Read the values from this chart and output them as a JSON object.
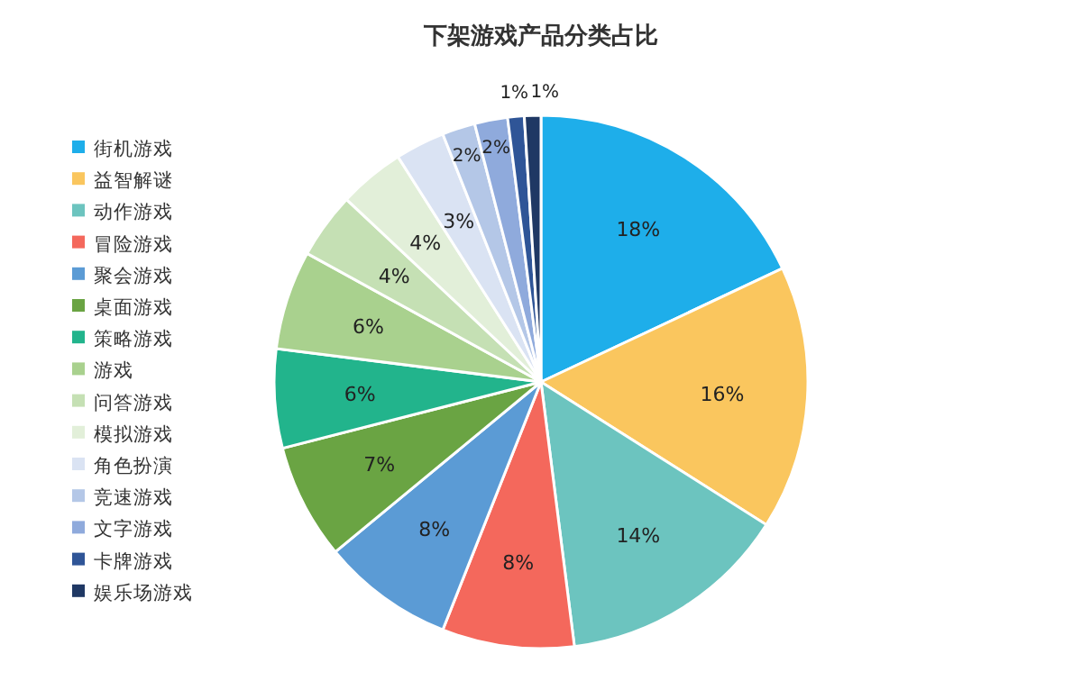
{
  "chart_data": {
    "type": "pie",
    "title": "下架游戏产品分类占比",
    "categories": [
      "街机游戏",
      "益智解谜",
      "动作游戏",
      "冒险游戏",
      "聚会游戏",
      "桌面游戏",
      "策略游戏",
      "游戏",
      "问答游戏",
      "模拟游戏",
      "角色扮演",
      "竞速游戏",
      "文字游戏",
      "卡牌游戏",
      "娱乐场游戏"
    ],
    "values": [
      18,
      16,
      14,
      8,
      8,
      7,
      6,
      6,
      4,
      4,
      3,
      2,
      2,
      1,
      1
    ],
    "colors": [
      "#1eaeea",
      "#fac65e",
      "#6cc4bf",
      "#f4685c",
      "#5b9bd5",
      "#6aa443",
      "#22b48c",
      "#a9d18e",
      "#c5e0b4",
      "#e2efd9",
      "#dae3f3",
      "#b4c7e7",
      "#8faadc",
      "#2f5597",
      "#1f3864"
    ],
    "value_labels": [
      "18%",
      "16%",
      "14%",
      "8%",
      "8%",
      "7%",
      "6%",
      "6%",
      "4%",
      "4%",
      "3%",
      "2%",
      "2%",
      "1%",
      "1%"
    ],
    "legend": "left"
  }
}
